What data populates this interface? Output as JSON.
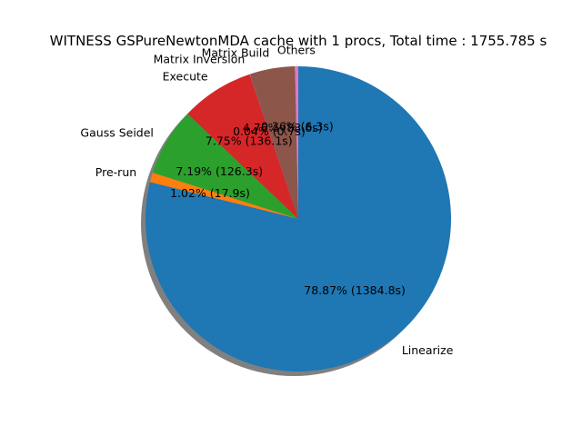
{
  "chart_data": {
    "type": "pie",
    "title": "WITNESS GSPureNewtonMDA cache with 1 procs, Total time : 1755.785 s",
    "shadow": true,
    "start_angle_deg": 90,
    "direction": "counterclockwise",
    "slices": [
      {
        "label": "Others",
        "pct_label": "0.36%  (6.3s)",
        "percent": 0.36,
        "seconds": 6.3,
        "color": "#e377c2"
      },
      {
        "label": "Matrix Build",
        "pct_label": "4.76%  (83.6s)",
        "percent": 4.76,
        "seconds": 83.6,
        "color": "#8c564b"
      },
      {
        "label": "Matrix Inversion",
        "pct_label": "0.04%  (0.7s)",
        "percent": 0.04,
        "seconds": 0.7,
        "color": "#9467bd"
      },
      {
        "label": "Execute",
        "pct_label": "7.75%  (136.1s)",
        "percent": 7.75,
        "seconds": 136.1,
        "color": "#d62728"
      },
      {
        "label": "Gauss Seidel",
        "pct_label": "7.19%  (126.3s)",
        "percent": 7.19,
        "seconds": 126.3,
        "color": "#2ca02c"
      },
      {
        "label": "Pre-run",
        "pct_label": "1.02%  (17.9s)",
        "percent": 1.02,
        "seconds": 17.9,
        "color": "#ff7f0e"
      },
      {
        "label": "Linearize",
        "pct_label": "78.87%  (1384.8s)",
        "percent": 78.87,
        "seconds": 1384.8,
        "color": "#1f77b4"
      }
    ]
  }
}
